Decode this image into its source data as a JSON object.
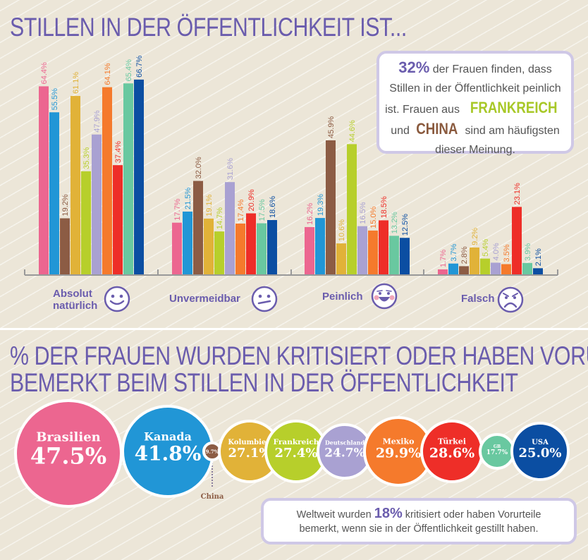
{
  "section1": {
    "title": "STILLEN IN DER ÖFFENTLICHKEIT IST...",
    "info_box": {
      "highlight": "32%",
      "line1_rest": " der Frauen finden, dass",
      "line2": "Stillen in der Öffentlichkeit peinlich",
      "line3_pre": "ist. Frauen aus ",
      "country1": "FRANKREICH",
      "line4_pre": "und ",
      "country2": "CHINA",
      "line4_rest": " sind am häufigsten",
      "line5": "dieser Meinung."
    },
    "categories": [
      {
        "label_line1": "Absolut",
        "label_line2": "natürlich",
        "icon": "smile-face-icon"
      },
      {
        "label_line1": "Unvermeidbar",
        "label_line2": "",
        "icon": "neutral-face-icon"
      },
      {
        "label_line1": "Peinlich",
        "label_line2": "",
        "icon": "embarrassed-face-icon"
      },
      {
        "label_line1": "Falsch",
        "label_line2": "",
        "icon": "angry-face-icon"
      }
    ]
  },
  "section2": {
    "title_line1": "% DER FRAUEN WURDEN KRITISIERT ODER HABEN VORURTEILE",
    "title_line2": "BEMERKT BEIM STILLEN IN DER ÖFFENTLICHKEIT",
    "china_callout": "China",
    "info_box": {
      "pre": "Weltweit wurden ",
      "highlight": "18%",
      "post": " kritisiert oder haben Vorurteile",
      "line2": "bemerkt, wenn sie in der Öffentlichkeit gestillt haben."
    }
  },
  "colors": {
    "Brasilien": "#ec6690",
    "Kanada": "#2196d6",
    "China": "#8c5c44",
    "Kolumbien": "#e1b238",
    "Frankreich": "#b7cf2b",
    "Deutschland": "#a9a1d2",
    "Mexiko": "#f57a2c",
    "Türkei": "#ee2e28",
    "GB": "#69c8a0",
    "USA": "#0b4ea2",
    "title": "#6a5cad"
  },
  "chart_data": [
    {
      "type": "bar",
      "title": "STILLEN IN DER ÖFFENTLICHKEIT IST...",
      "categories": [
        "Absolut natürlich",
        "Unvermeidbar",
        "Peinlich",
        "Falsch"
      ],
      "ylim": [
        0,
        70
      ],
      "unit": "%",
      "grid": false,
      "legend": "none",
      "series": [
        {
          "name": "Brasilien",
          "values": [
            64.4,
            17.7,
            16.2,
            1.7
          ],
          "labels": [
            "64.4%",
            "17.7%",
            "16.2%",
            "1.7%"
          ]
        },
        {
          "name": "Kanada",
          "values": [
            55.5,
            21.5,
            19.3,
            3.7
          ],
          "labels": [
            "55.5%",
            "21.5%",
            "19.3%",
            "3.7%"
          ]
        },
        {
          "name": "China",
          "values": [
            19.2,
            32.0,
            45.9,
            2.8
          ],
          "labels": [
            "19.2%",
            "32.0%",
            "45.9%",
            "2.8%"
          ]
        },
        {
          "name": "Kolumbien",
          "values": [
            61.1,
            19.1,
            10.6,
            9.2
          ],
          "labels": [
            "61.1%",
            "19.1%",
            "10.6%",
            "9.2%"
          ]
        },
        {
          "name": "Frankreich",
          "values": [
            35.3,
            14.7,
            44.6,
            5.4
          ],
          "labels": [
            "35.3%",
            "14.7%",
            "44.6%",
            "5.4%"
          ]
        },
        {
          "name": "Deutschland",
          "values": [
            47.9,
            31.6,
            16.5,
            4.0
          ],
          "labels": [
            "47.9%",
            "31.6%",
            "16.5%",
            "4.0%"
          ]
        },
        {
          "name": "Mexiko",
          "values": [
            64.1,
            17.4,
            15.0,
            3.5
          ],
          "labels": [
            "64.1%",
            "17.4%",
            "15.0%",
            "3.5%"
          ]
        },
        {
          "name": "Türkei",
          "values": [
            37.4,
            20.9,
            18.5,
            23.1
          ],
          "labels": [
            "37.4%",
            "20.9%",
            "18.5%",
            "23.1%"
          ]
        },
        {
          "name": "GB",
          "values": [
            65.4,
            17.5,
            13.2,
            3.9
          ],
          "labels": [
            "65.4%",
            "17.5%",
            "13.2%",
            "3.9%"
          ]
        },
        {
          "name": "USA",
          "values": [
            66.7,
            18.6,
            12.5,
            2.1
          ],
          "labels": [
            "66.7%",
            "18.6%",
            "12.5%",
            "2.1%"
          ]
        }
      ]
    },
    {
      "type": "bubble",
      "title": "% DER FRAUEN WURDEN KRITISIERT ODER HABEN VORURTEILE BEMERKT BEIM STILLEN IN DER ÖFFENTLICHKEIT",
      "unit": "%",
      "points": [
        {
          "name": "Brasilien",
          "value": 47.5,
          "label": "47.5%"
        },
        {
          "name": "Kanada",
          "value": 41.8,
          "label": "41.8%"
        },
        {
          "name": "China",
          "value": 9.7,
          "label": "9.7%"
        },
        {
          "name": "Kolumbien",
          "value": 27.1,
          "label": "27.1%"
        },
        {
          "name": "Frankreich",
          "value": 27.4,
          "label": "27.4%"
        },
        {
          "name": "Deutschland",
          "value": 24.7,
          "label": "24.7%"
        },
        {
          "name": "Mexiko",
          "value": 29.9,
          "label": "29.9%"
        },
        {
          "name": "Türkei",
          "value": 28.6,
          "label": "28.6%"
        },
        {
          "name": "GB",
          "value": 17.7,
          "label": "17.7%"
        },
        {
          "name": "USA",
          "value": 25.0,
          "label": "25.0%"
        }
      ]
    }
  ]
}
